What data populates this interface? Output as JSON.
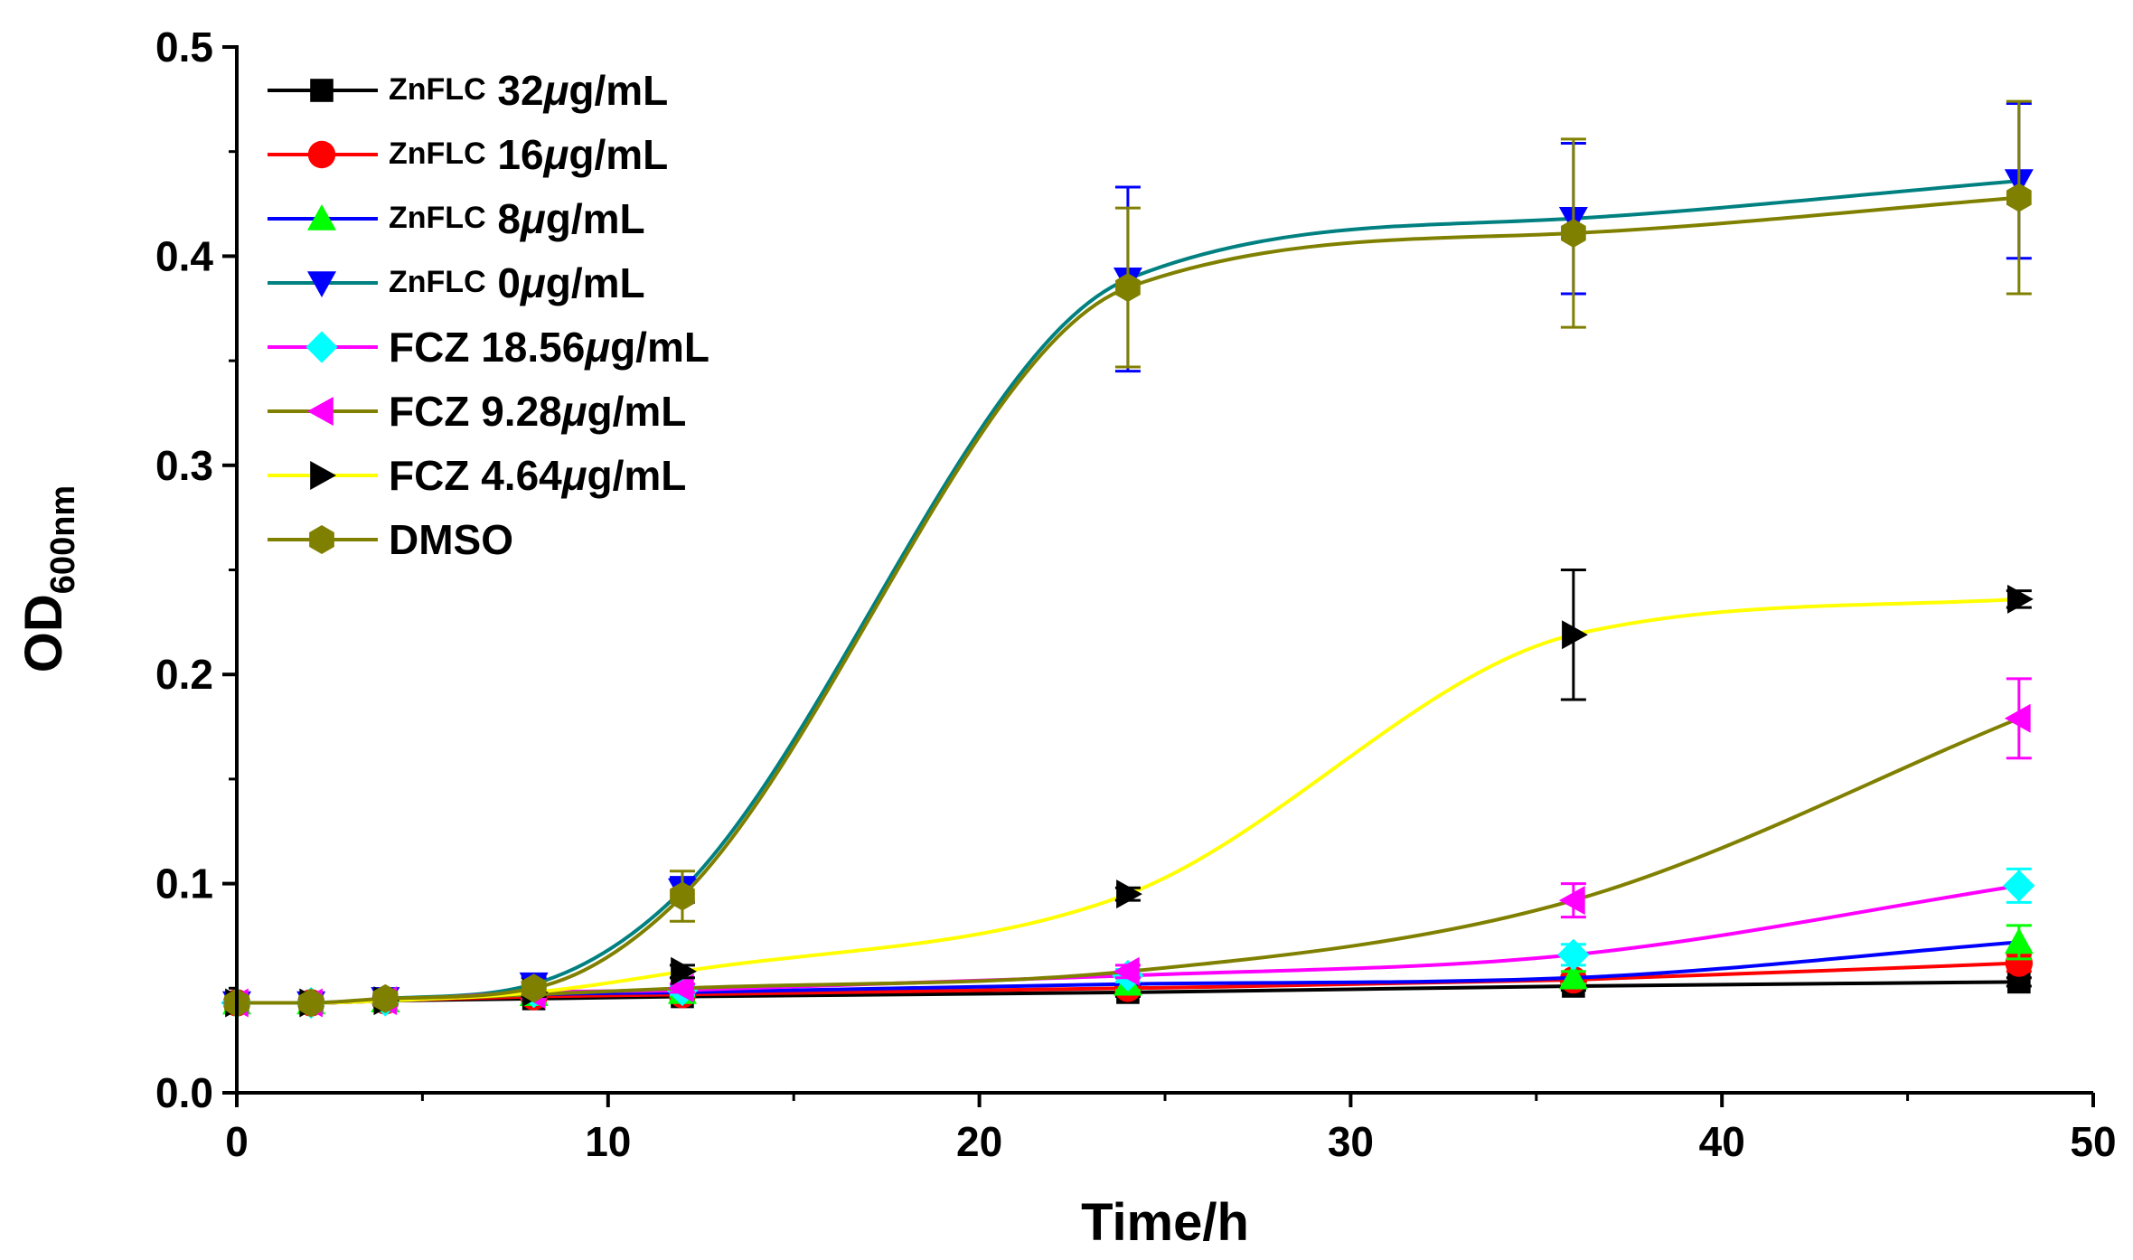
{
  "chart_data": {
    "type": "line",
    "xlabel": "Time/h",
    "ylabel_main": "OD",
    "ylabel_sub": "600nm",
    "xlim": [
      0,
      50
    ],
    "ylim": [
      0,
      0.5
    ],
    "xticks": [
      0,
      10,
      20,
      30,
      40,
      50
    ],
    "xtick_labels": [
      "0",
      "10",
      "20",
      "30",
      "40",
      "50"
    ],
    "yticks": [
      0,
      0.1,
      0.2,
      0.3,
      0.4,
      0.5
    ],
    "ytick_labels": [
      "0.0",
      "0.1",
      "0.2",
      "0.3",
      "0.4",
      "0.5"
    ],
    "x": [
      0,
      2,
      4,
      8,
      12,
      24,
      36,
      48
    ],
    "series": [
      {
        "name": "ZnFLC 32μg/mL",
        "legend_prefix": "ZnFLC",
        "legend_conc": "32",
        "legend_unit": "g/mL",
        "marker": "square",
        "marker_color": "#000000",
        "line_color": "#000000",
        "values": [
          0.043,
          0.043,
          0.044,
          0.045,
          0.046,
          0.048,
          0.051,
          0.053
        ],
        "errors": [
          0.002,
          0.002,
          0.002,
          0.002,
          0.002,
          0.002,
          0.002,
          0.002
        ]
      },
      {
        "name": "ZnFLC 16μg/mL",
        "legend_prefix": "ZnFLC",
        "legend_conc": "16",
        "legend_unit": "g/mL",
        "marker": "circle",
        "marker_color": "#ff0000",
        "line_color": "#ff0000",
        "values": [
          0.043,
          0.043,
          0.044,
          0.046,
          0.047,
          0.05,
          0.054,
          0.062
        ],
        "errors": [
          0.002,
          0.002,
          0.002,
          0.002,
          0.002,
          0.002,
          0.002,
          0.004
        ]
      },
      {
        "name": "ZnFLC 8μg/mL",
        "legend_prefix": "ZnFLC",
        "legend_conc": "8",
        "legend_unit": "g/mL",
        "marker": "triangle-up",
        "marker_color": "#00ff00",
        "line_color": "#0000ff",
        "values": [
          0.043,
          0.043,
          0.044,
          0.047,
          0.048,
          0.052,
          0.055,
          0.072
        ],
        "errors": [
          0.002,
          0.002,
          0.002,
          0.002,
          0.002,
          0.003,
          0.003,
          0.008
        ]
      },
      {
        "name": "ZnFLC 0μg/mL",
        "legend_prefix": "ZnFLC",
        "legend_conc": "0",
        "legend_unit": "g/mL",
        "marker": "triangle-down",
        "marker_color": "#0000ff",
        "line_color": "#008080",
        "values": [
          0.043,
          0.043,
          0.045,
          0.052,
          0.097,
          0.389,
          0.418,
          0.436
        ],
        "errors": [
          0.002,
          0.002,
          0.002,
          0.003,
          0.006,
          0.044,
          0.036,
          0.037
        ]
      },
      {
        "name": "FCZ 18.56μg/mL",
        "legend_prefix": "FCZ",
        "legend_conc": "18.56",
        "legend_unit": "g/mL",
        "marker": "diamond",
        "marker_color": "#00ffff",
        "line_color": "#ff00ff",
        "values": [
          0.043,
          0.043,
          0.044,
          0.048,
          0.049,
          0.056,
          0.066,
          0.099
        ],
        "errors": [
          0.002,
          0.002,
          0.002,
          0.002,
          0.002,
          0.003,
          0.005,
          0.008
        ]
      },
      {
        "name": "FCZ 9.28μg/mL",
        "legend_prefix": "FCZ",
        "legend_conc": "9.28",
        "legend_unit": "g/mL",
        "marker": "triangle-left",
        "marker_color": "#ff00ff",
        "line_color": "#808000",
        "values": [
          0.043,
          0.043,
          0.044,
          0.047,
          0.05,
          0.058,
          0.092,
          0.179
        ],
        "errors": [
          0.002,
          0.002,
          0.002,
          0.002,
          0.002,
          0.003,
          0.008,
          0.019
        ]
      },
      {
        "name": "FCZ 4.64μg/mL",
        "legend_prefix": "FCZ",
        "legend_conc": "4.64",
        "legend_unit": "g/mL",
        "marker": "triangle-right",
        "marker_color": "#000000",
        "line_color": "#ffff00",
        "values": [
          0.043,
          0.043,
          0.044,
          0.048,
          0.058,
          0.095,
          0.219,
          0.236
        ],
        "errors": [
          0.002,
          0.002,
          0.002,
          0.002,
          0.003,
          0.003,
          0.031,
          0.004
        ]
      },
      {
        "name": "DMSO",
        "legend_prefix": "",
        "legend_conc": "",
        "legend_unit": "",
        "legend_text": "DMSO",
        "marker": "hexagon",
        "marker_color": "#808000",
        "line_color": "#808000",
        "values": [
          0.043,
          0.043,
          0.045,
          0.05,
          0.094,
          0.385,
          0.411,
          0.428
        ],
        "errors": [
          0.002,
          0.002,
          0.002,
          0.003,
          0.012,
          0.038,
          0.045,
          0.046
        ]
      }
    ],
    "legend_position": "top-left"
  }
}
